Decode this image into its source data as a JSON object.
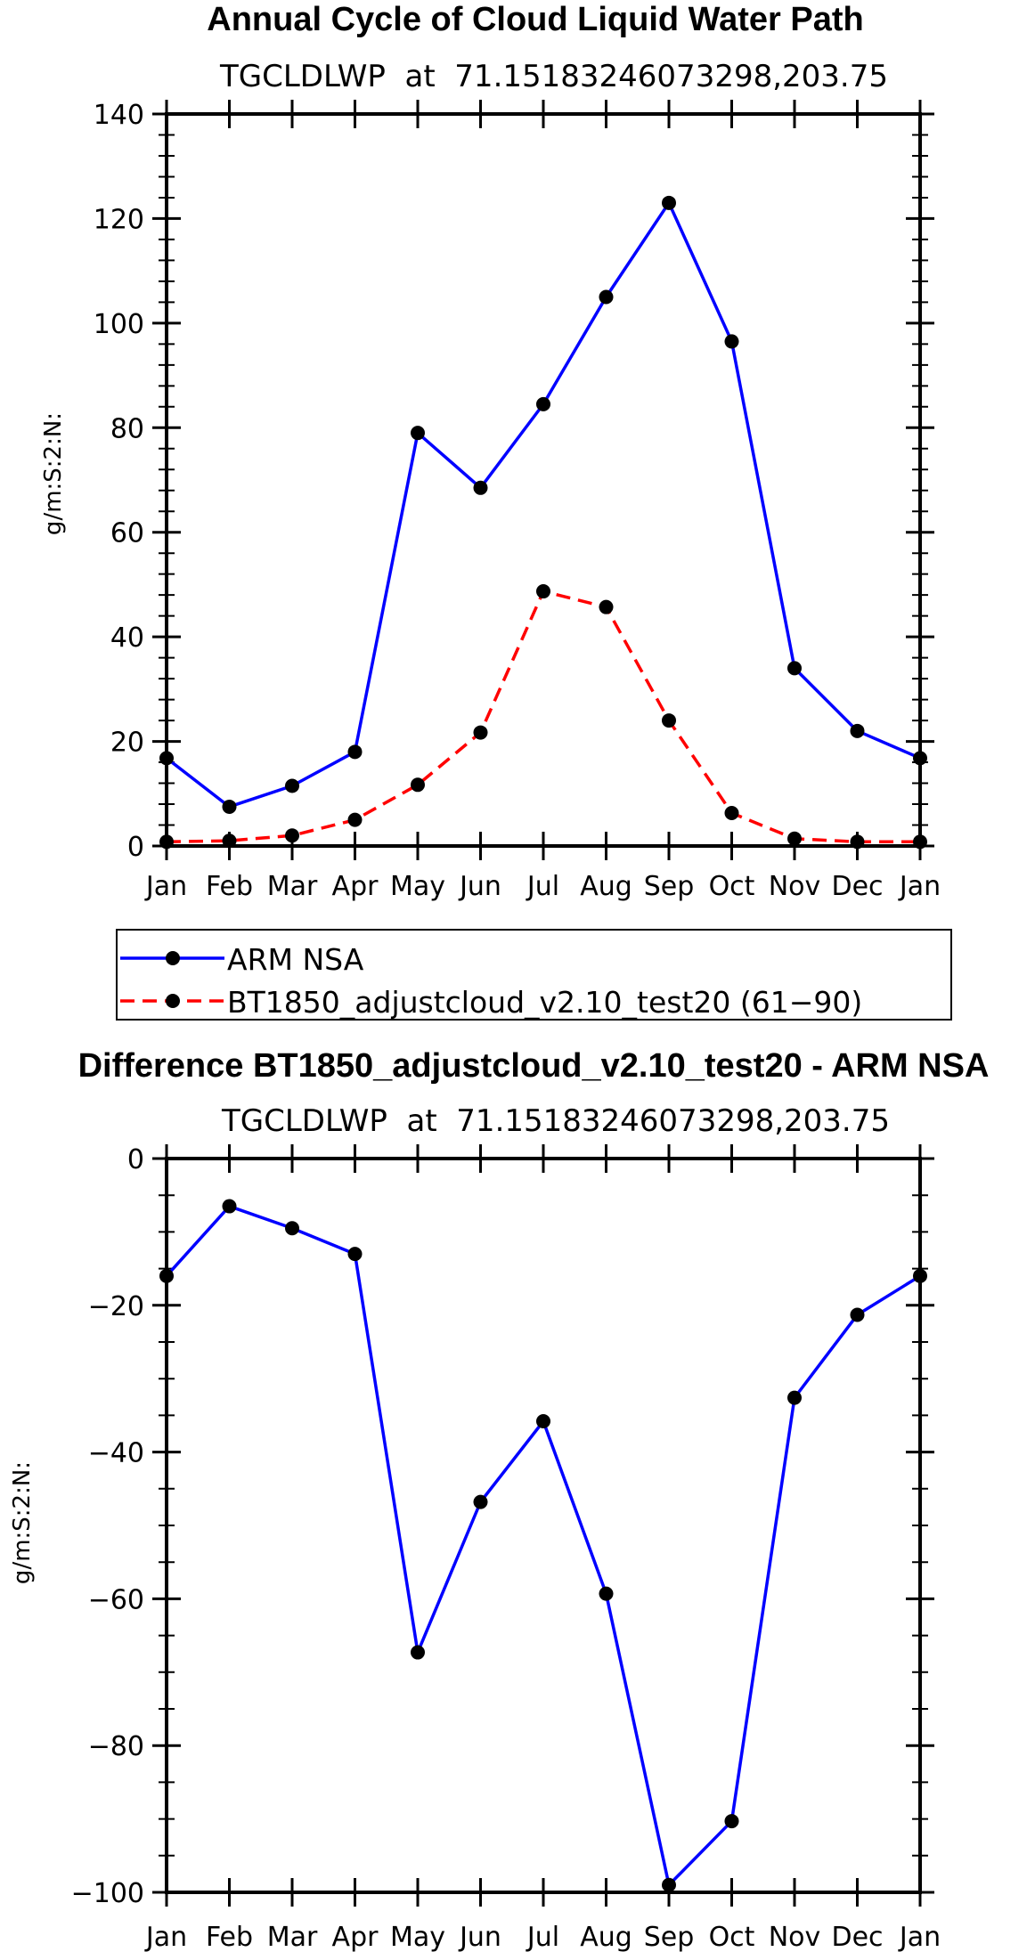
{
  "chart_data": [
    {
      "type": "line",
      "title": "Annual Cycle of Cloud Liquid Water Path",
      "subtitle": "TGCLDLWP  at  71.15183246073298,203.75",
      "xlabel": "",
      "ylabel": "g/m:S:2:N:",
      "categories": [
        "Jan",
        "Feb",
        "Mar",
        "Apr",
        "May",
        "Jun",
        "Jul",
        "Aug",
        "Sep",
        "Oct",
        "Nov",
        "Dec",
        "Jan"
      ],
      "ylim": [
        0,
        140
      ],
      "yticks": [
        0,
        20,
        40,
        60,
        80,
        100,
        120,
        140
      ],
      "series": [
        {
          "name": "ARM NSA",
          "color": "#0000ff",
          "style": "solid",
          "values": [
            16.8,
            7.5,
            11.5,
            18.0,
            79.0,
            68.5,
            84.5,
            105.0,
            123.0,
            96.5,
            34.0,
            22.0,
            16.8
          ]
        },
        {
          "name": "BT1850_adjustcloud_v2.10_test20 (61-90)",
          "color": "#ff0000",
          "style": "dashed",
          "values": [
            0.8,
            1.0,
            2.0,
            5.0,
            11.7,
            21.7,
            48.7,
            45.7,
            24.0,
            6.3,
            1.4,
            0.8,
            0.8
          ]
        }
      ],
      "legend": {
        "placement": "below",
        "entries": [
          "ARM NSA",
          "BT1850_adjustcloud_v2.10_test20 (61−90)"
        ]
      }
    },
    {
      "type": "line",
      "title": "Difference BT1850_adjustcloud_v2.10_test20 - ARM NSA",
      "subtitle": "TGCLDLWP  at  71.15183246073298,203.75",
      "xlabel": "",
      "ylabel": "g/m:S:2:N:",
      "categories": [
        "Jan",
        "Feb",
        "Mar",
        "Apr",
        "May",
        "Jun",
        "Jul",
        "Aug",
        "Sep",
        "Oct",
        "Nov",
        "Dec",
        "Jan"
      ],
      "ylim": [
        -100,
        0
      ],
      "yticks": [
        -100,
        -80,
        -60,
        -40,
        -20,
        0
      ],
      "ytick_labels": [
        "−100",
        "−80",
        "−60",
        "−40",
        "−20",
        "0"
      ],
      "series": [
        {
          "name": "Difference",
          "color": "#0000ff",
          "style": "solid",
          "values": [
            -16.0,
            -6.5,
            -9.5,
            -13.0,
            -67.3,
            -46.8,
            -35.8,
            -59.3,
            -99.0,
            -90.3,
            -32.6,
            -21.3,
            -16.0
          ]
        }
      ]
    }
  ]
}
